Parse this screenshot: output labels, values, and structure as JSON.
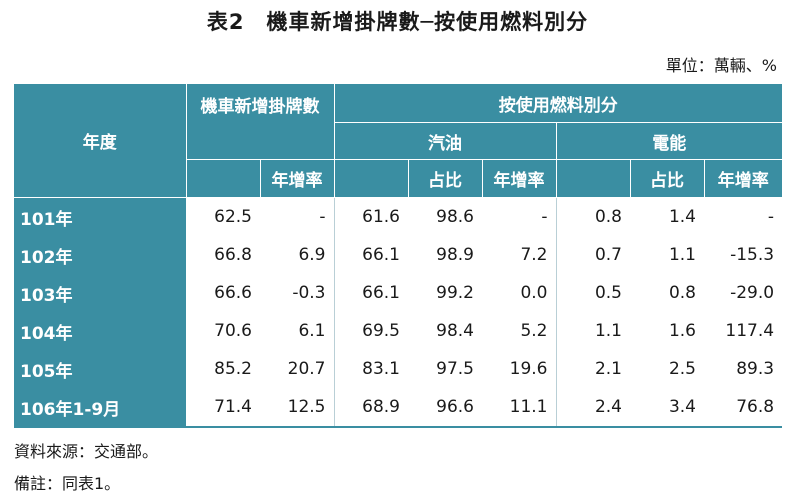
{
  "title": "表2　機車新增掛牌數─按使用燃料別分",
  "unit": "單位：萬輛、%",
  "headers": {
    "year": "年度",
    "new_plates": "機車新增掛牌數",
    "by_fuel": "按使用燃料別分",
    "gasoline": "汽油",
    "electric": "電能",
    "yoy": "年增率",
    "share": "占比"
  },
  "rows": [
    {
      "year": "101年",
      "total": "62.5",
      "total_yoy": "-",
      "gas": "61.6",
      "gas_share": "98.6",
      "gas_yoy": "-",
      "ev": "0.8",
      "ev_share": "1.4",
      "ev_yoy": "-"
    },
    {
      "year": "102年",
      "total": "66.8",
      "total_yoy": "6.9",
      "gas": "66.1",
      "gas_share": "98.9",
      "gas_yoy": "7.2",
      "ev": "0.7",
      "ev_share": "1.1",
      "ev_yoy": "-15.3"
    },
    {
      "year": "103年",
      "total": "66.6",
      "total_yoy": "-0.3",
      "gas": "66.1",
      "gas_share": "99.2",
      "gas_yoy": "0.0",
      "ev": "0.5",
      "ev_share": "0.8",
      "ev_yoy": "-29.0"
    },
    {
      "year": "104年",
      "total": "70.6",
      "total_yoy": "6.1",
      "gas": "69.5",
      "gas_share": "98.4",
      "gas_yoy": "5.2",
      "ev": "1.1",
      "ev_share": "1.6",
      "ev_yoy": "117.4"
    },
    {
      "year": "105年",
      "total": "85.2",
      "total_yoy": "20.7",
      "gas": "83.1",
      "gas_share": "97.5",
      "gas_yoy": "19.6",
      "ev": "2.1",
      "ev_share": "2.5",
      "ev_yoy": "89.3"
    },
    {
      "year": "106年1-9月",
      "total": "71.4",
      "total_yoy": "12.5",
      "gas": "68.9",
      "gas_share": "96.6",
      "gas_yoy": "11.1",
      "ev": "2.4",
      "ev_share": "3.4",
      "ev_yoy": "76.8"
    }
  ],
  "source": "資料來源：交通部。",
  "remark": "備註：同表1。"
}
